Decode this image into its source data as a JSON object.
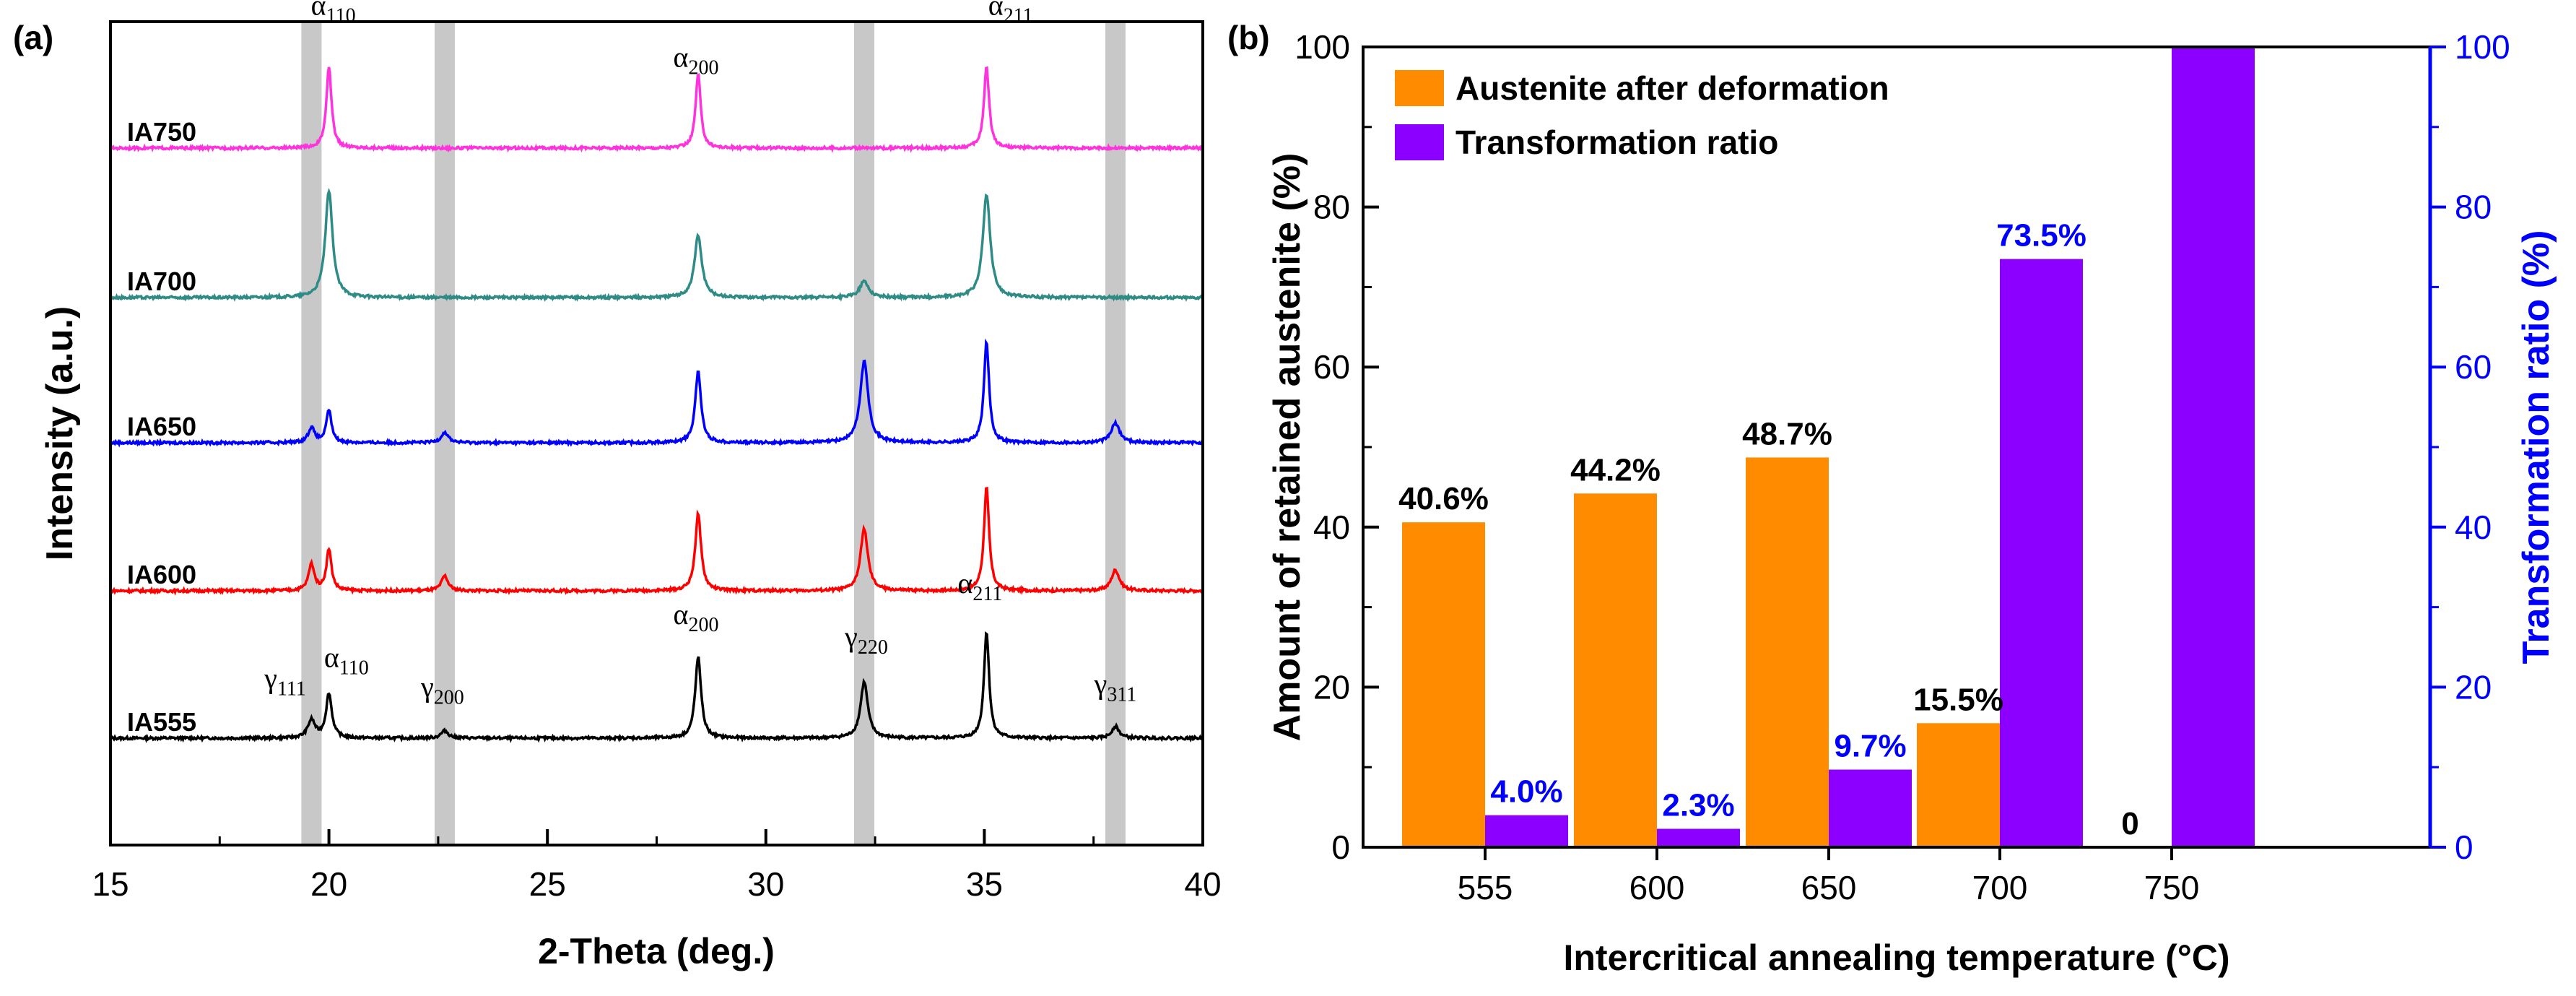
{
  "chart_data": [
    {
      "type": "line",
      "panel_label": "(a)",
      "xlabel": "2-Theta (deg.)",
      "ylabel": "Intensity (a.u.)",
      "xlim": [
        15,
        40
      ],
      "x_ticks": [
        "15",
        "20",
        "25",
        "30",
        "35",
        "40"
      ],
      "highlight_bands": [
        19.6,
        22.65,
        32.25,
        38.0
      ],
      "series": [
        {
          "name": "IA555",
          "color": "#000000",
          "baseline": 0,
          "peaks": [
            [
              19.6,
              0.12,
              0.1
            ],
            [
              20.0,
              0.3,
              0.08
            ],
            [
              22.65,
              0.05,
              0.1
            ],
            [
              28.45,
              0.55,
              0.08
            ],
            [
              32.25,
              0.38,
              0.1
            ],
            [
              35.05,
              0.72,
              0.07
            ],
            [
              38.0,
              0.08,
              0.1
            ]
          ]
        },
        {
          "name": "IA600",
          "color": "#ff0000",
          "baseline": 1,
          "peaks": [
            [
              19.6,
              0.18,
              0.08
            ],
            [
              20.0,
              0.28,
              0.07
            ],
            [
              22.65,
              0.1,
              0.09
            ],
            [
              28.45,
              0.52,
              0.08
            ],
            [
              32.25,
              0.42,
              0.1
            ],
            [
              35.05,
              0.7,
              0.07
            ],
            [
              38.0,
              0.14,
              0.11
            ]
          ]
        },
        {
          "name": "IA650",
          "color": "#0000ff",
          "baseline": 2,
          "peaks": [
            [
              19.6,
              0.1,
              0.09
            ],
            [
              20.0,
              0.22,
              0.07
            ],
            [
              22.65,
              0.07,
              0.1
            ],
            [
              28.45,
              0.48,
              0.08
            ],
            [
              32.25,
              0.55,
              0.11
            ],
            [
              35.05,
              0.68,
              0.07
            ],
            [
              38.0,
              0.13,
              0.12
            ]
          ]
        },
        {
          "name": "IA700",
          "color": "#2e8b86",
          "baseline": 3,
          "peaks": [
            [
              20.0,
              0.72,
              0.1
            ],
            [
              28.45,
              0.42,
              0.1
            ],
            [
              32.25,
              0.11,
              0.12
            ],
            [
              35.05,
              0.7,
              0.1
            ]
          ]
        },
        {
          "name": "IA750",
          "color": "#ff33dd",
          "baseline": 4,
          "peaks": [
            [
              20.0,
              0.55,
              0.07
            ],
            [
              28.45,
              0.5,
              0.07
            ],
            [
              35.05,
              0.55,
              0.07
            ]
          ]
        }
      ],
      "annotations": [
        {
          "greek": "α",
          "sub": "110",
          "x": 20.1,
          "level": 4.9
        },
        {
          "greek": "α",
          "sub": "200",
          "x": 28.4,
          "level": 4.55
        },
        {
          "greek": "α",
          "sub": "211",
          "x": 35.6,
          "level": 4.9
        },
        {
          "greek": "γ",
          "sub": "111",
          "x": 19.0,
          "level": 0.34
        },
        {
          "greek": "α",
          "sub": "110",
          "x": 20.4,
          "level": 0.48
        },
        {
          "greek": "γ",
          "sub": "200",
          "x": 22.6,
          "level": 0.28
        },
        {
          "greek": "α",
          "sub": "200",
          "x": 28.4,
          "level": 0.77
        },
        {
          "greek": "γ",
          "sub": "220",
          "x": 32.3,
          "level": 0.62
        },
        {
          "greek": "α",
          "sub": "211",
          "x": 34.9,
          "level": 0.98
        },
        {
          "greek": "γ",
          "sub": "311",
          "x": 38.0,
          "level": 0.3
        }
      ]
    },
    {
      "type": "bar",
      "panel_label": "(b)",
      "xlabel": "Intercritical annealing temperature (°C)",
      "ylabel": "Amount of retained austenite (%)",
      "y2label": "Transformation ratio (%)",
      "ylim": [
        0,
        100
      ],
      "y2lim": [
        0,
        100
      ],
      "y_ticks": [
        "0",
        "20",
        "40",
        "60",
        "80",
        "100"
      ],
      "categories": [
        "555",
        "600",
        "650",
        "700",
        "750"
      ],
      "series": [
        {
          "name": "Austenite after deformation",
          "color": "#ff8c00",
          "axis": "left",
          "values": [
            40.6,
            44.2,
            48.7,
            15.5,
            0
          ],
          "labels": [
            "40.6%",
            "44.2%",
            "48.7%",
            "15.5%",
            "0"
          ],
          "label_color": "#000000"
        },
        {
          "name": "Transformation ratio",
          "color": "#8b00ff",
          "axis": "right",
          "values": [
            4.0,
            2.3,
            9.7,
            73.5,
            100
          ],
          "labels": [
            "4.0%",
            "2.3%",
            "9.7%",
            "73.5%",
            ""
          ],
          "label_color": "#0000ff"
        }
      ],
      "legend_position": "top-left",
      "right_axis_color": "#0000ff"
    }
  ]
}
